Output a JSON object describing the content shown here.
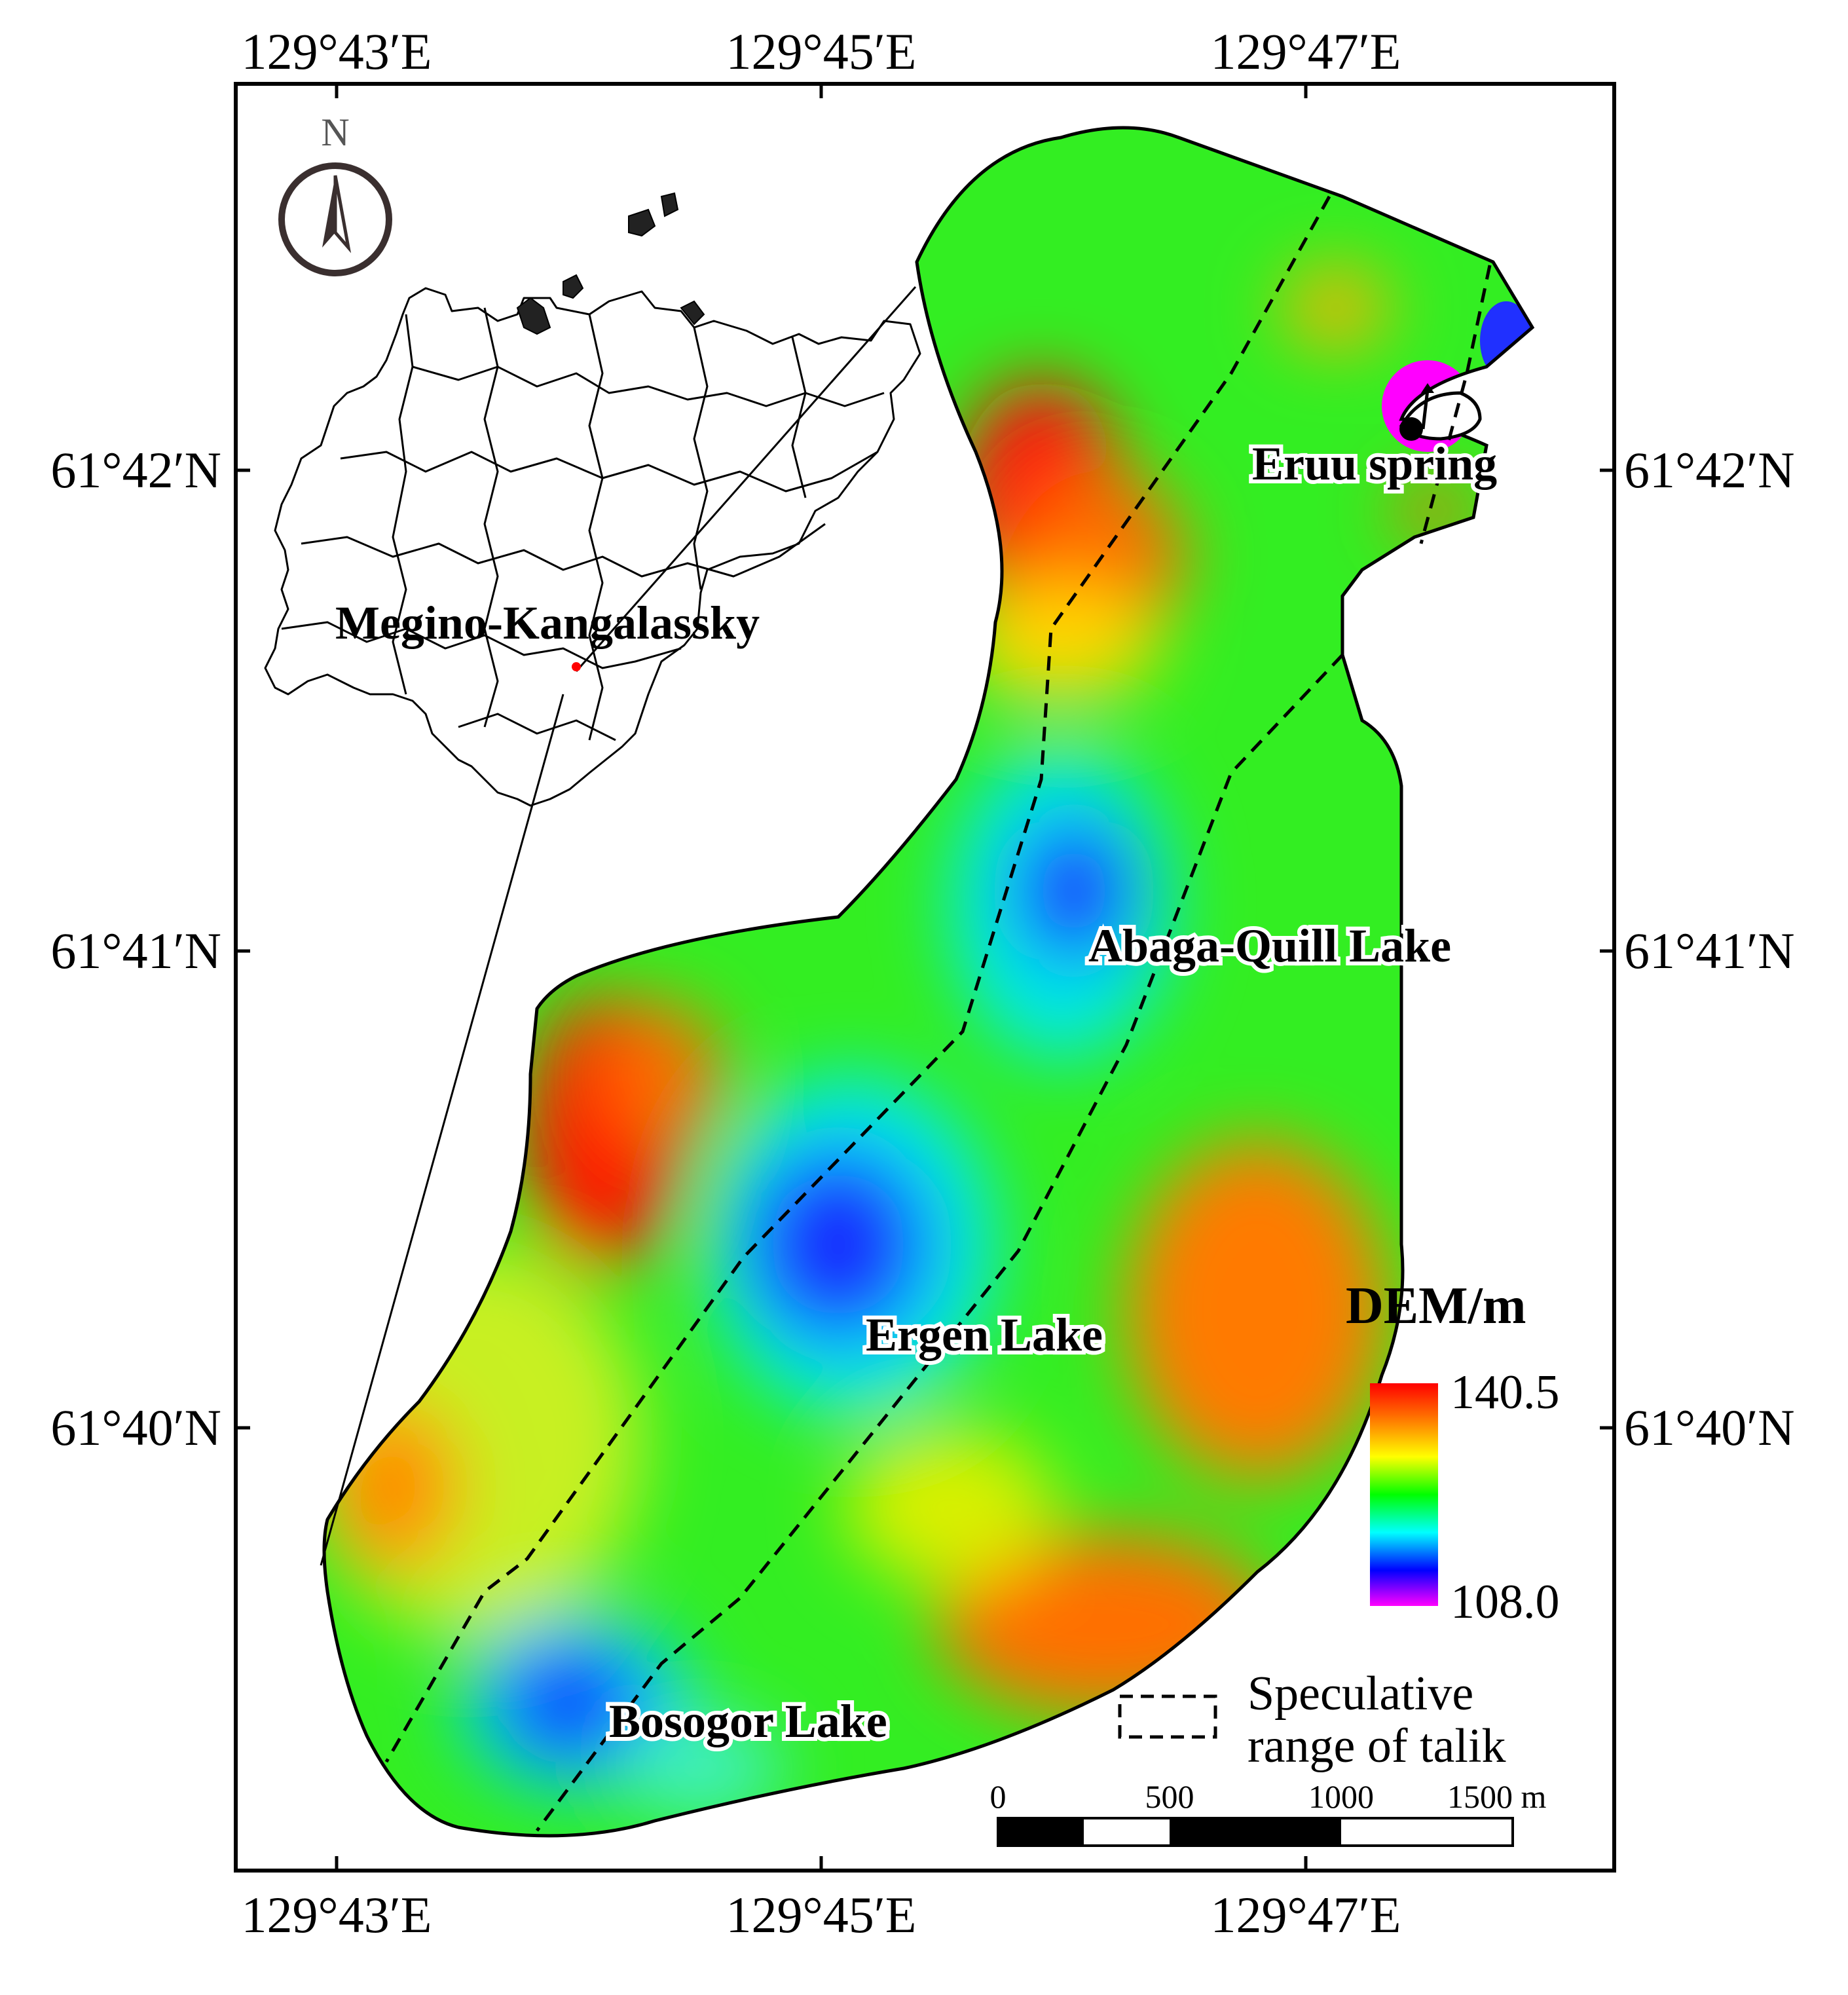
{
  "axes": {
    "top_lon": [
      "129°43′E",
      "129°45′E",
      "129°47′E"
    ],
    "bottom_lon": [
      "129°43′E",
      "129°45′E",
      "129°47′E"
    ],
    "left_lat": [
      "61°42′N",
      "61°41′N",
      "61°40′N"
    ],
    "right_lat": [
      "61°42′N",
      "61°41′N",
      "61°40′N"
    ]
  },
  "north_arrow": {
    "label": "N"
  },
  "inset": {
    "district_label": "Megino-Kangalassky"
  },
  "lakes": {
    "spring": "Eruu spring",
    "abaga": "Abaga-Quill Lake",
    "ergen": "Ergen Lake",
    "bosogor": "Bosogor Lake"
  },
  "legend": {
    "title": "DEM/m",
    "max": "140.5",
    "min": "108.0",
    "colors": [
      "#ff0000",
      "#ff7f00",
      "#ffff00",
      "#00ff00",
      "#00ffff",
      "#0000ff",
      "#ff00ff"
    ],
    "talik_line1": "Speculative",
    "talik_line2": "range of talik"
  },
  "scale_bar": {
    "labels": [
      "0",
      "500",
      "1000",
      "1500 m"
    ]
  }
}
